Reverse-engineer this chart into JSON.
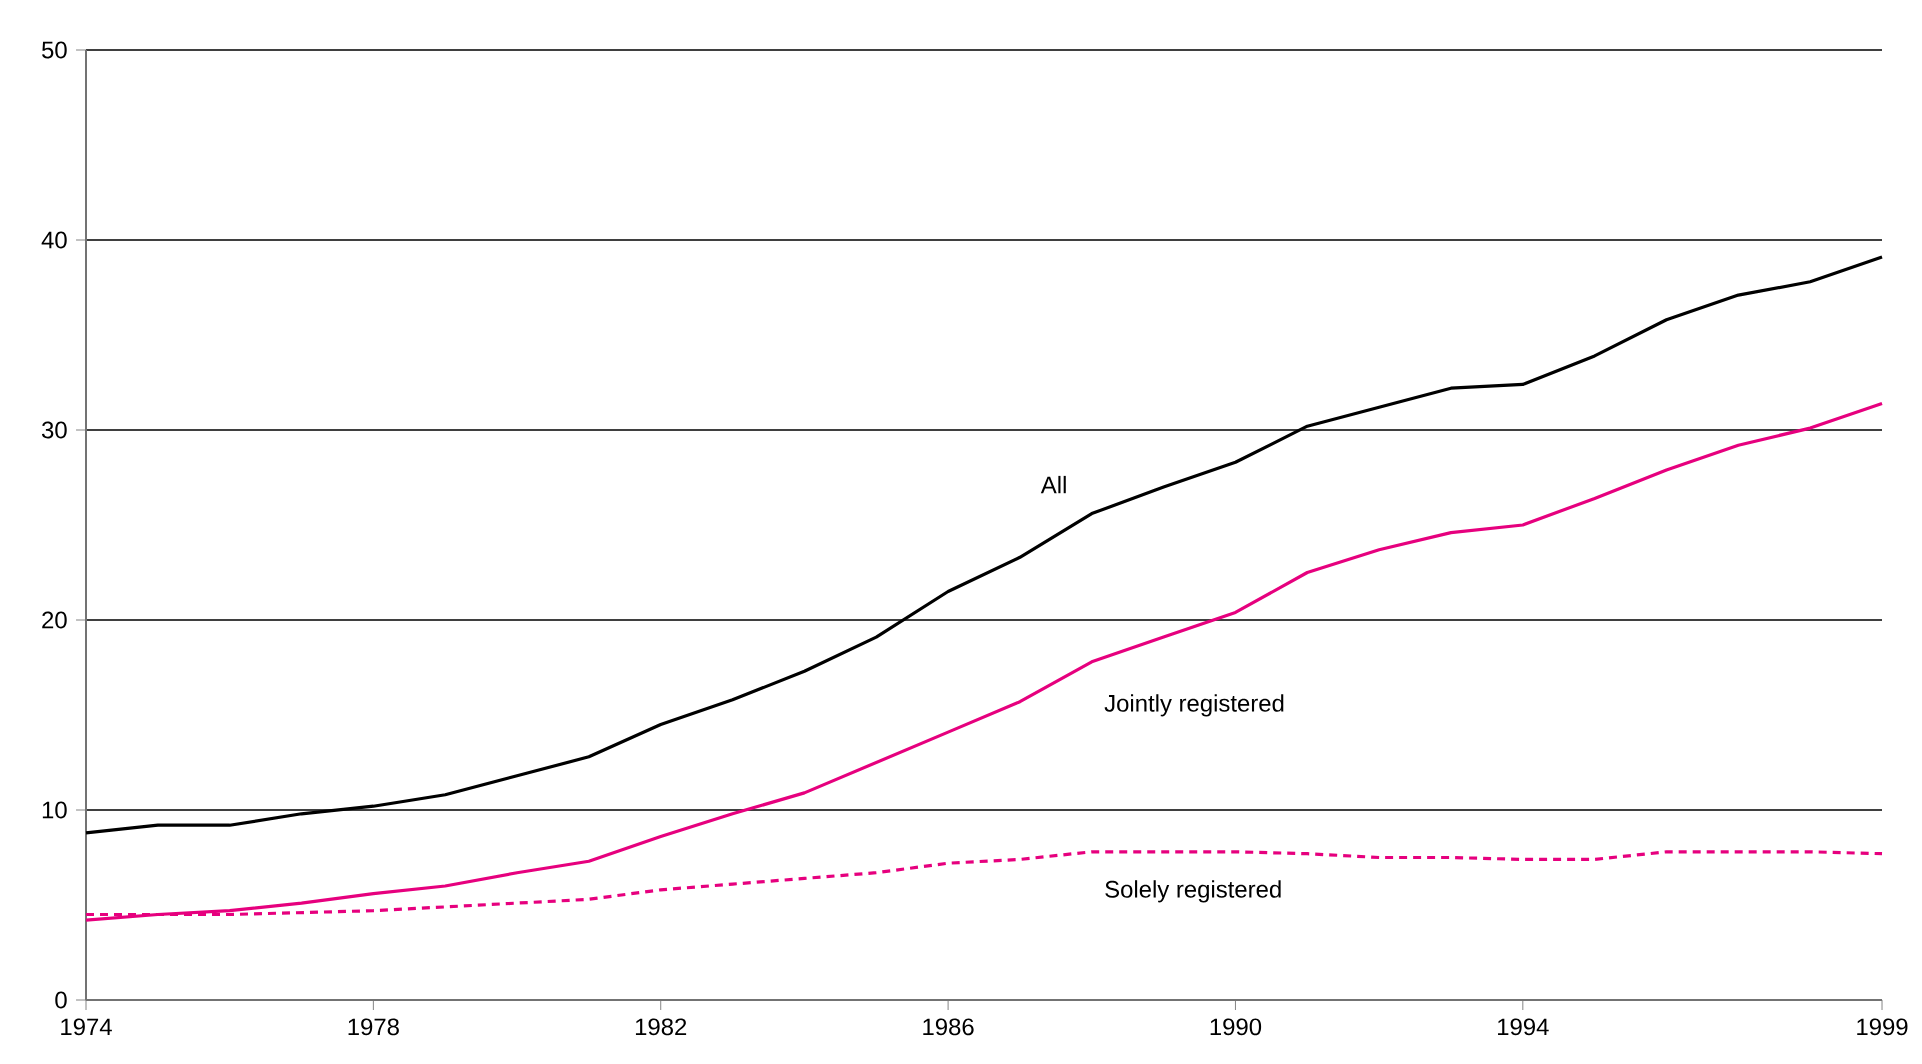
{
  "chart_data": {
    "type": "line",
    "x": [
      1974,
      1975,
      1976,
      1977,
      1978,
      1979,
      1980,
      1981,
      1982,
      1983,
      1984,
      1985,
      1986,
      1987,
      1988,
      1989,
      1990,
      1991,
      1992,
      1993,
      1994,
      1995,
      1996,
      1997,
      1998,
      1999
    ],
    "series": [
      {
        "name": "All",
        "color": "#000000",
        "line_style": "solid",
        "values": [
          8.8,
          9.2,
          9.2,
          9.8,
          10.2,
          10.8,
          11.8,
          12.8,
          14.5,
          15.8,
          17.3,
          19.1,
          21.5,
          23.3,
          25.6,
          27.0,
          28.3,
          30.2,
          31.2,
          32.2,
          32.4,
          33.9,
          35.8,
          37.1,
          37.8,
          39.1
        ]
      },
      {
        "name": "Jointly registered",
        "color": "#e6007e",
        "line_style": "solid",
        "values": [
          4.2,
          4.5,
          4.7,
          5.1,
          5.6,
          6.0,
          6.7,
          7.3,
          8.6,
          9.8,
          10.9,
          12.5,
          14.1,
          15.7,
          17.8,
          19.1,
          20.4,
          22.5,
          23.7,
          24.6,
          25.0,
          26.4,
          27.9,
          29.2,
          30.1,
          31.4
        ]
      },
      {
        "name": "Solely registered",
        "color": "#e6007e",
        "line_style": "dashed",
        "values": [
          4.5,
          4.5,
          4.5,
          4.6,
          4.7,
          4.9,
          5.1,
          5.3,
          5.8,
          6.1,
          6.4,
          6.7,
          7.2,
          7.4,
          7.8,
          7.8,
          7.8,
          7.7,
          7.5,
          7.5,
          7.4,
          7.4,
          7.8,
          7.8,
          7.8,
          7.7
        ]
      }
    ],
    "xlim": [
      1974,
      1999
    ],
    "xticks": [
      1974,
      1978,
      1982,
      1986,
      1990,
      1994,
      1999
    ],
    "ylim": [
      0,
      50
    ],
    "yticks": [
      0,
      10,
      20,
      30,
      40,
      50
    ],
    "grid": "y",
    "legend": false,
    "marker": "none"
  }
}
